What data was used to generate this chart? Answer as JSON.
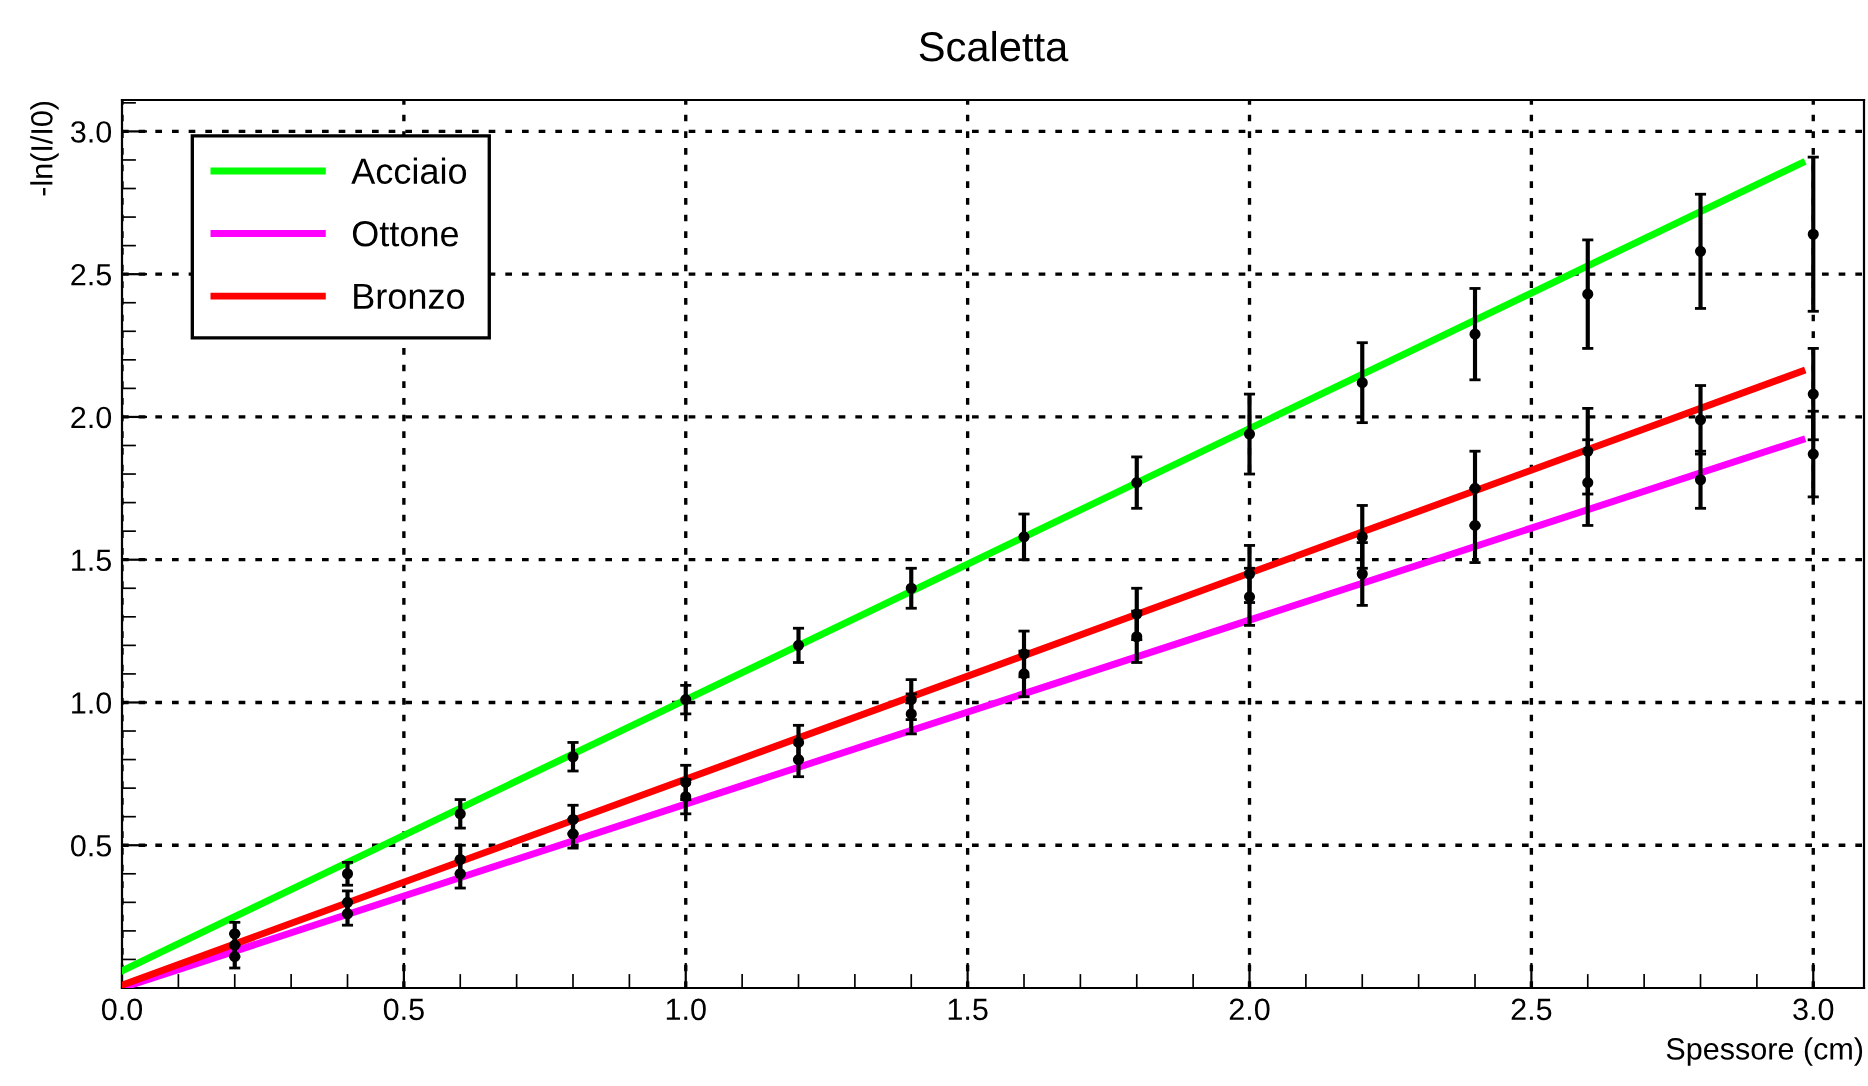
{
  "chart_data": {
    "type": "scatter",
    "title": "Scaletta",
    "xlabel": "Spessore (cm)",
    "ylabel": "-ln(I/I0)",
    "xlim": [
      0,
      3.09
    ],
    "ylim": [
      0,
      3.11
    ],
    "xticks": [
      {
        "value": 0,
        "label": "0.0"
      },
      0.5,
      {
        "value": 1,
        "label": "1.0"
      },
      1.5,
      {
        "value": 2,
        "label": "2.0"
      },
      2.5,
      {
        "value": 3,
        "label": "3.0"
      }
    ],
    "yticks": [
      0.5,
      {
        "value": 1,
        "label": "1.0"
      },
      1.5,
      {
        "value": 2,
        "label": "2.0"
      },
      2.5,
      {
        "value": 3,
        "label": "3.0"
      }
    ],
    "grid": true,
    "legend": "top left",
    "series": [
      {
        "type": "line",
        "name": "Acciaio",
        "color": "#00ff00",
        "x": [
          0,
          2.98
        ],
        "values": [
          0.06,
          2.89
        ]
      },
      {
        "type": "line",
        "name": "Ottone",
        "color": "#ff00ff",
        "x": [
          0,
          2.98
        ],
        "values": [
          0.0,
          1.92
        ]
      },
      {
        "type": "line",
        "name": "Bronzo",
        "color": "#ff0000",
        "x": [
          0,
          2.98
        ],
        "values": [
          0.01,
          2.16
        ]
      },
      {
        "marker": "circle",
        "color": "#000000",
        "x": [
          0.2,
          0.4,
          0.6,
          0.8,
          1.0,
          1.2,
          1.4,
          1.6,
          1.8,
          2.0,
          2.2,
          2.4,
          2.6,
          2.8,
          3.0
        ],
        "values": [
          0.19,
          0.4,
          0.61,
          0.81,
          1.01,
          1.2,
          1.4,
          1.58,
          1.77,
          1.94,
          2.12,
          2.29,
          2.43,
          2.58,
          2.64
        ],
        "errors": [
          0.04,
          0.04,
          0.05,
          0.05,
          0.05,
          0.06,
          0.07,
          0.08,
          0.09,
          0.14,
          0.14,
          0.16,
          0.19,
          0.2,
          0.27
        ]
      },
      {
        "marker": "circle",
        "color": "#000000",
        "x": [
          0.2,
          0.4,
          0.6,
          0.8,
          1.0,
          1.2,
          1.4,
          1.6,
          1.8,
          2.0,
          2.2,
          2.4,
          2.6,
          2.8,
          3.0
        ],
        "values": [
          0.11,
          0.26,
          0.4,
          0.54,
          0.67,
          0.8,
          0.96,
          1.1,
          1.23,
          1.37,
          1.45,
          1.62,
          1.77,
          1.78,
          1.87
        ],
        "errors": [
          0.04,
          0.04,
          0.05,
          0.05,
          0.06,
          0.06,
          0.07,
          0.08,
          0.09,
          0.1,
          0.11,
          0.13,
          0.15,
          0.1,
          0.15
        ]
      },
      {
        "marker": "circle",
        "color": "#000000",
        "x": [
          0.2,
          0.4,
          0.6,
          0.8,
          1.0,
          1.2,
          1.4,
          1.6,
          1.8,
          2.0,
          2.2,
          2.4,
          2.6,
          2.8,
          3.0
        ],
        "values": [
          0.15,
          0.3,
          0.45,
          0.59,
          0.72,
          0.86,
          1.01,
          1.17,
          1.31,
          1.45,
          1.58,
          1.75,
          1.88,
          1.99,
          2.08
        ],
        "errors": [
          0.04,
          0.04,
          0.05,
          0.05,
          0.06,
          0.06,
          0.07,
          0.08,
          0.09,
          0.1,
          0.11,
          0.13,
          0.15,
          0.12,
          0.16
        ]
      }
    ]
  }
}
